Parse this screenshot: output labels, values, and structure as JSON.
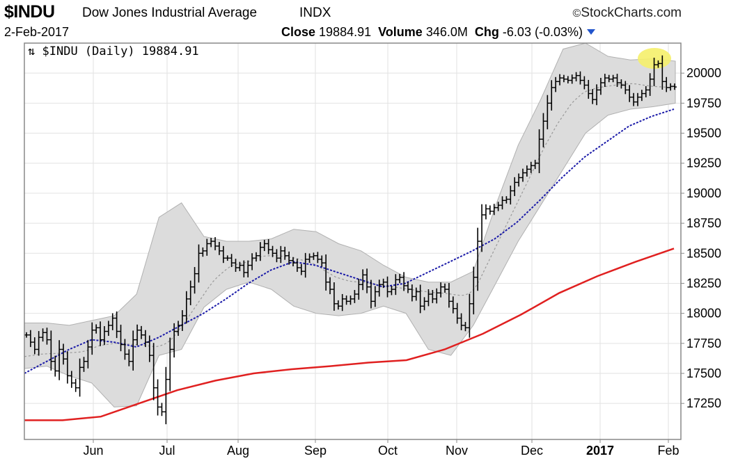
{
  "header": {
    "symbol": "$INDU",
    "name": "Dow Jones Industrial Average",
    "exchange": "INDX",
    "brand": "StockCharts.com",
    "brand_symbol": "©",
    "date": "2-Feb-2017",
    "close_label": "Close",
    "close_value": "19884.91",
    "volume_label": "Volume",
    "volume_value": "346.0M",
    "chg_label": "Chg",
    "chg_value": "-6.03 (-0.03%)"
  },
  "colors": {
    "price_bars": "#000000",
    "bollinger_fill": "#dcdcdc",
    "bollinger_edge": "#b0b0b0",
    "sma20": "#999999",
    "sma50": "#1a1aa8",
    "sma200": "#e02020",
    "highlight": "#f5f06a",
    "down_arrow": "#2255cc"
  },
  "chart_data": {
    "type": "ohlc",
    "title": "$INDU (Daily) 19884.91",
    "legend_symbol": "⇅",
    "y_ticks": [
      17250,
      17500,
      17750,
      18000,
      18250,
      18500,
      18750,
      19000,
      19250,
      19500,
      19750,
      20000
    ],
    "ylim": [
      16950,
      20250
    ],
    "y_side": "right",
    "grid": true,
    "x_labels": [
      "Jun",
      "Jul",
      "Aug",
      "Sep",
      "Oct",
      "Nov",
      "Dec",
      "2017",
      "Feb"
    ],
    "x_labels_bold": [
      "2017"
    ],
    "close_series": [
      17820,
      17760,
      17700,
      17800,
      17840,
      17780,
      17600,
      17520,
      17700,
      17620,
      17480,
      17420,
      17380,
      17550,
      17600,
      17720,
      17860,
      17880,
      17780,
      17850,
      17900,
      17960,
      17850,
      17740,
      17660,
      17600,
      17780,
      17860,
      17820,
      17760,
      17650,
      17380,
      17220,
      17180,
      17450,
      17700,
      17850,
      17900,
      17980,
      18120,
      18220,
      18330,
      18500,
      18520,
      18580,
      18600,
      18560,
      18520,
      18460,
      18460,
      18420,
      18380,
      18400,
      18340,
      18400,
      18460,
      18480,
      18550,
      18580,
      18530,
      18500,
      18460,
      18520,
      18480,
      18440,
      18420,
      18380,
      18350,
      18450,
      18470,
      18480,
      18450,
      18420,
      18260,
      18200,
      18080,
      18060,
      18120,
      18100,
      18120,
      18160,
      18240,
      18320,
      18220,
      18100,
      18180,
      18240,
      18260,
      18180,
      18200,
      18280,
      18300,
      18230,
      18200,
      18140,
      18180,
      18060,
      18100,
      18160,
      18120,
      18170,
      18220,
      18200,
      18100,
      18040,
      17960,
      17900,
      17880,
      18080,
      18300,
      18600,
      18820,
      18870,
      18850,
      18880,
      18900,
      18940,
      18950,
      19020,
      19090,
      19130,
      19170,
      19200,
      19230,
      19250,
      19450,
      19600,
      19750,
      19880,
      19930,
      19960,
      19950,
      19940,
      19960,
      19980,
      19940,
      19900,
      19830,
      19780,
      19860,
      19920,
      19960,
      19950,
      19960,
      19920,
      19900,
      19860,
      19800,
      19760,
      19800,
      19830,
      19860,
      19950,
      20070,
      20080,
      19930,
      19880,
      19890,
      19884.91
    ],
    "sma20_series": [
      17640,
      17645,
      17650,
      17655,
      17660,
      17662,
      17664,
      17665,
      17666,
      17668,
      17670,
      17672,
      17674,
      17676,
      17680,
      17688,
      17700,
      17715,
      17728,
      17735,
      17740,
      17745,
      17750,
      17752,
      17750,
      17745,
      17742,
      17740,
      17738,
      17735,
      17730,
      17725,
      17722,
      17728,
      17740,
      17760,
      17790,
      17830,
      17875,
      17920,
      17970,
      18020,
      18070,
      18120,
      18170,
      18220,
      18265,
      18300,
      18330,
      18360,
      18385,
      18400,
      18410,
      18415,
      18425,
      18435,
      18450,
      18465,
      18475,
      18478,
      18480,
      18480,
      18478,
      18475,
      18470,
      18465,
      18460,
      18450,
      18440,
      18430,
      18420,
      18405,
      18385,
      18360,
      18340,
      18320,
      18300,
      18290,
      18280,
      18270,
      18265,
      18262,
      18260,
      18256,
      18250,
      18245,
      18240,
      18235,
      18230,
      18225,
      18220,
      18215,
      18210,
      18205,
      18200,
      18195,
      18190,
      18185,
      18180,
      18175,
      18172,
      18170,
      18168,
      18165,
      18160,
      18155,
      18150,
      18150,
      18160,
      18180,
      18220,
      18280,
      18350,
      18420,
      18490,
      18560,
      18630,
      18700,
      18770,
      18840,
      18910,
      18980,
      19050,
      19120,
      19190,
      19260,
      19330,
      19400,
      19460,
      19520,
      19580,
      19630,
      19680,
      19730,
      19770,
      19800,
      19830,
      19850,
      19860,
      19870,
      19880,
      19885,
      19890,
      19895,
      19900,
      19905,
      19908,
      19910,
      19912,
      19910,
      19905,
      19900,
      19895,
      19890,
      19888,
      19886,
      19884,
      19882,
      19880
    ],
    "sma50_series": [
      17500,
      17600,
      17700,
      17780,
      17760,
      17720,
      17800,
      17900,
      18000,
      18120,
      18250,
      18360,
      18430,
      18400,
      18340,
      18280,
      18220,
      18250,
      18340,
      18430,
      18520,
      18620,
      18760,
      18940,
      19130,
      19300,
      19430,
      19560,
      19640,
      19700
    ],
    "sma200_series": [
      17110,
      17110,
      17140,
      17250,
      17360,
      17440,
      17500,
      17535,
      17560,
      17590,
      17610,
      17700,
      17830,
      17990,
      18170,
      18310,
      18430,
      18540
    ],
    "bollinger_upper": [
      17920,
      17920,
      17900,
      17940,
      17980,
      18160,
      18800,
      18920,
      18640,
      18600,
      18600,
      18620,
      18700,
      18680,
      18580,
      18520,
      18400,
      18300,
      18260,
      18260,
      18350,
      18900,
      19400,
      19780,
      20200,
      20250,
      20140,
      20110,
      20120,
      20100
    ],
    "bollinger_lower": [
      17540,
      17560,
      17480,
      17420,
      17220,
      17230,
      17650,
      17700,
      18050,
      18200,
      18260,
      18200,
      18060,
      18000,
      17980,
      18000,
      18060,
      18000,
      17700,
      17650,
      17900,
      18250,
      18600,
      18900,
      19200,
      19500,
      19650,
      19700,
      19720,
      19750
    ]
  }
}
